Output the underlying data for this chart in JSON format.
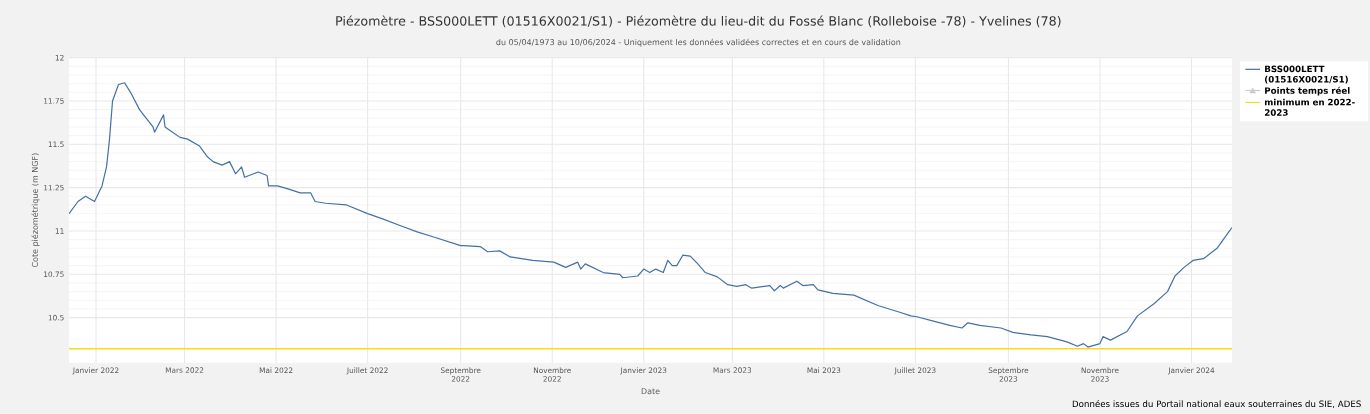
{
  "chart_data": {
    "type": "line",
    "title": "Piézomètre - BSS000LETT (01516X0021/S1) - Piézomètre du lieu-dit du Fossé Blanc (Rolleboise -78) - Yvelines (78)",
    "subtitle": "du 05/04/1973 au 10/06/2024 - Uniquement les données validées correctes et en cours de validation",
    "xlabel": "Date",
    "ylabel": "Cote piézométrique (m NGF)",
    "annotations": [
      "Données issues du Portail national eaux souterraines du SIE, ADES"
    ],
    "xlim": [
      "2021-12-14",
      "2024-01-28"
    ],
    "ylim": [
      10.24,
      12
    ],
    "xticks": [
      {
        "value": "2022-01-01",
        "label": "Janvier 2022"
      },
      {
        "value": "2022-03-01",
        "label": "Mars 2022"
      },
      {
        "value": "2022-05-01",
        "label": "Mai 2022"
      },
      {
        "value": "2022-07-01",
        "label": "Juillet 2022"
      },
      {
        "value": "2022-09-01",
        "label": "Septembre 2022"
      },
      {
        "value": "2022-11-01",
        "label": "Novembre 2022"
      },
      {
        "value": "2023-01-01",
        "label": "Janvier 2023"
      },
      {
        "value": "2023-03-01",
        "label": "Mars 2023"
      },
      {
        "value": "2023-05-01",
        "label": "Mai 2023"
      },
      {
        "value": "2023-07-01",
        "label": "Juillet 2023"
      },
      {
        "value": "2023-09-01",
        "label": "Septembre 2023"
      },
      {
        "value": "2023-11-01",
        "label": "Novembre 2023"
      },
      {
        "value": "2024-01-01",
        "label": "Janvier 2024"
      }
    ],
    "yticks": [
      10.5,
      10.75,
      11,
      11.25,
      11.5,
      11.75,
      12
    ],
    "grid": true,
    "legend": "right",
    "series": [
      {
        "name": "BSS000LETT (01516X0021/S1)",
        "color": "#4470a8",
        "x": [
          "2021-12-14",
          "2021-12-20",
          "2021-12-25",
          "2021-12-31",
          "2022-01-05",
          "2022-01-08",
          "2022-01-10",
          "2022-01-12",
          "2022-01-16",
          "2022-01-20",
          "2022-01-24",
          "2022-01-30",
          "2022-02-03",
          "2022-02-08",
          "2022-02-09",
          "2022-02-15",
          "2022-02-16",
          "2022-02-21",
          "2022-02-26",
          "2022-03-03",
          "2022-03-11",
          "2022-03-16",
          "2022-03-20",
          "2022-03-26",
          "2022-03-31",
          "2022-04-04",
          "2022-04-08",
          "2022-04-10",
          "2022-04-16",
          "2022-04-19",
          "2022-04-25",
          "2022-04-26",
          "2022-05-02",
          "2022-05-10",
          "2022-05-17",
          "2022-05-24",
          "2022-05-27",
          "2022-06-03",
          "2022-06-17",
          "2022-07-01",
          "2022-07-11",
          "2022-07-23",
          "2022-08-03",
          "2022-08-14",
          "2022-09-01",
          "2022-09-03",
          "2022-09-14",
          "2022-09-19",
          "2022-09-27",
          "2022-10-04",
          "2022-10-19",
          "2022-11-02",
          "2022-11-10",
          "2022-11-18",
          "2022-11-20",
          "2022-11-23",
          "2022-12-05",
          "2022-12-16",
          "2022-12-18",
          "2022-12-28",
          "2023-01-01",
          "2023-01-05",
          "2023-01-09",
          "2023-01-14",
          "2023-01-17",
          "2023-01-20",
          "2023-01-23",
          "2023-01-27",
          "2023-02-01",
          "2023-02-06",
          "2023-02-11",
          "2023-02-19",
          "2023-02-26",
          "2023-03-04",
          "2023-03-10",
          "2023-03-14",
          "2023-03-26",
          "2023-03-29",
          "2023-04-02",
          "2023-04-04",
          "2023-04-13",
          "2023-04-17",
          "2023-04-24",
          "2023-04-27",
          "2023-05-07",
          "2023-05-21",
          "2023-06-06",
          "2023-06-19",
          "2023-06-28",
          "2023-07-02",
          "2023-07-13",
          "2023-07-24",
          "2023-08-01",
          "2023-08-05",
          "2023-08-13",
          "2023-08-27",
          "2023-09-04",
          "2023-09-16",
          "2023-09-27",
          "2023-10-10",
          "2023-10-17",
          "2023-10-21",
          "2023-10-24",
          "2023-11-01",
          "2023-11-03",
          "2023-11-08",
          "2023-11-19",
          "2023-11-26",
          "2023-12-07",
          "2023-12-16",
          "2023-12-21",
          "2023-12-27",
          "2024-01-02",
          "2024-01-09",
          "2024-01-18",
          "2024-01-25",
          "2024-01-28"
        ],
        "values": [
          11.1,
          11.17,
          11.2,
          11.17,
          11.26,
          11.37,
          11.53,
          11.75,
          11.845,
          11.855,
          11.8,
          11.7,
          11.655,
          11.6,
          11.57,
          11.67,
          11.6,
          11.57,
          11.54,
          11.53,
          11.49,
          11.43,
          11.4,
          11.38,
          11.4,
          11.33,
          11.37,
          11.31,
          11.33,
          11.34,
          11.32,
          11.26,
          11.26,
          11.24,
          11.22,
          11.22,
          11.17,
          11.16,
          11.15,
          11.1,
          11.07,
          11.03,
          10.995,
          10.965,
          10.915,
          10.915,
          10.91,
          10.88,
          10.885,
          10.85,
          10.83,
          10.82,
          10.79,
          10.82,
          10.78,
          10.81,
          10.76,
          10.75,
          10.73,
          10.74,
          10.78,
          10.76,
          10.78,
          10.76,
          10.83,
          10.8,
          10.8,
          10.86,
          10.855,
          10.81,
          10.76,
          10.735,
          10.69,
          10.68,
          10.69,
          10.67,
          10.685,
          10.655,
          10.685,
          10.67,
          10.71,
          10.685,
          10.69,
          10.66,
          10.64,
          10.63,
          10.57,
          10.535,
          10.51,
          10.505,
          10.48,
          10.455,
          10.44,
          10.47,
          10.455,
          10.44,
          10.415,
          10.4,
          10.39,
          10.36,
          10.335,
          10.35,
          10.33,
          10.35,
          10.39,
          10.37,
          10.42,
          10.51,
          10.58,
          10.65,
          10.74,
          10.79,
          10.83,
          10.84,
          10.9,
          10.985,
          11.02
        ]
      },
      {
        "name": "Points temps réel",
        "color": "#cccccc",
        "marker": "triangle"
      }
    ],
    "ref_lines": [
      {
        "axis": "y",
        "value": 10.32,
        "label": "minimum en 2022-2023",
        "color": "#f5dc1e"
      }
    ]
  }
}
